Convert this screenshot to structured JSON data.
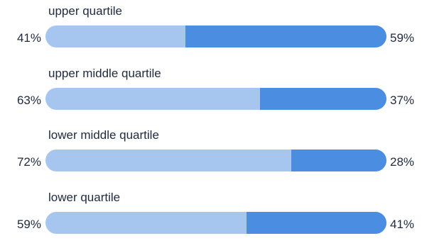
{
  "chart_data": {
    "type": "bar",
    "orientation": "horizontal",
    "stacked": true,
    "normalized_percent": true,
    "categories": [
      "upper quartile",
      "upper middle quartile",
      "lower middle quartile",
      "lower quartile"
    ],
    "series": [
      {
        "values": [
          41,
          63,
          72,
          59
        ],
        "labels": [
          "41%",
          "63%",
          "72%",
          "59%"
        ],
        "color": "#a6c6ef"
      },
      {
        "values": [
          59,
          37,
          28,
          41
        ],
        "labels": [
          "59%",
          "37%",
          "28%",
          "41%"
        ],
        "color": "#4b8de1"
      }
    ],
    "xlim": [
      0,
      100
    ],
    "grid": false,
    "legend": "none"
  }
}
